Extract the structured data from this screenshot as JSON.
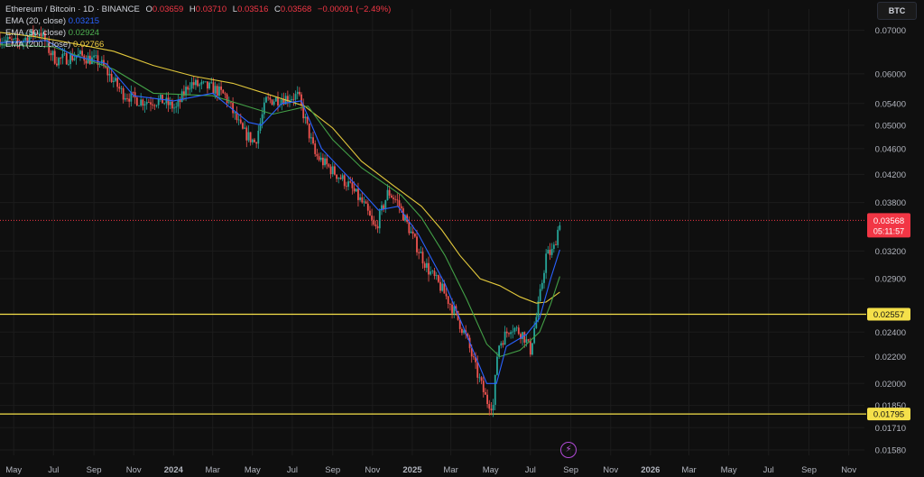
{
  "legend": {
    "pair": "Ethereum / Bitcoin · 1D · BINANCE",
    "open_label": "O",
    "open": "0.03659",
    "high_label": "H",
    "high": "0.03710",
    "low_label": "L",
    "low": "0.03516",
    "close_label": "C",
    "close": "0.03568",
    "change": "−0.00091 (−2.49%)",
    "ema20_label": "EMA (20, close)",
    "ema20": "0.03215",
    "ema50_label": "EMA (50, close)",
    "ema50": "0.02924",
    "ema200_label": "EMA (200, close)",
    "ema200": "0.02766"
  },
  "symbol_button": "BTC",
  "colors": {
    "background": "#0f0f0f",
    "grid": "#1c1c1c",
    "up": "#26a69a",
    "down": "#ef5350",
    "ema20": "#2962ff",
    "ema50": "#43a047",
    "ema200": "#e3c93c",
    "hline": "#f5e04a",
    "axis_text": "#b2b5be",
    "price_tag": "#f23645"
  },
  "chart_data": {
    "type": "candlestick",
    "scale": "log",
    "ylim": [
      0.0155,
      0.0755
    ],
    "x_range": [
      "2023-04-10",
      "2026-11-25"
    ],
    "y_ticks": [
      "0.07000",
      "0.06000",
      "0.05400",
      "0.05000",
      "0.04600",
      "0.04200",
      "0.03800",
      "0.03200",
      "0.02900",
      "0.02400",
      "0.02200",
      "0.02000",
      "0.01850",
      "0.01710",
      "0.01580"
    ],
    "x_ticks": [
      {
        "date": "2023-05-01",
        "label": "May"
      },
      {
        "date": "2023-07-01",
        "label": "Jul"
      },
      {
        "date": "2023-09-01",
        "label": "Sep"
      },
      {
        "date": "2023-11-01",
        "label": "Nov"
      },
      {
        "date": "2024-01-01",
        "label": "2024"
      },
      {
        "date": "2024-03-01",
        "label": "Mar"
      },
      {
        "date": "2024-05-01",
        "label": "May"
      },
      {
        "date": "2024-07-01",
        "label": "Jul"
      },
      {
        "date": "2024-09-01",
        "label": "Sep"
      },
      {
        "date": "2024-11-01",
        "label": "Nov"
      },
      {
        "date": "2025-01-01",
        "label": "2025"
      },
      {
        "date": "2025-03-01",
        "label": "Mar"
      },
      {
        "date": "2025-05-01",
        "label": "May"
      },
      {
        "date": "2025-07-01",
        "label": "Jul"
      },
      {
        "date": "2025-09-01",
        "label": "Sep"
      },
      {
        "date": "2025-11-01",
        "label": "Nov"
      },
      {
        "date": "2026-01-01",
        "label": "2026"
      },
      {
        "date": "2026-03-01",
        "label": "Mar"
      },
      {
        "date": "2026-05-01",
        "label": "May"
      },
      {
        "date": "2026-07-01",
        "label": "Jul"
      },
      {
        "date": "2026-09-01",
        "label": "Sep"
      },
      {
        "date": "2026-11-01",
        "label": "Nov"
      }
    ],
    "close_path": [
      {
        "date": "2023-04-10",
        "price": 0.068
      },
      {
        "date": "2023-05-05",
        "price": 0.0668
      },
      {
        "date": "2023-06-10",
        "price": 0.07
      },
      {
        "date": "2023-06-25",
        "price": 0.065
      },
      {
        "date": "2023-07-05",
        "price": 0.063
      },
      {
        "date": "2023-08-10",
        "price": 0.064
      },
      {
        "date": "2023-09-10",
        "price": 0.0625
      },
      {
        "date": "2023-10-15",
        "price": 0.056
      },
      {
        "date": "2023-11-10",
        "price": 0.0545
      },
      {
        "date": "2023-12-15",
        "price": 0.0545
      },
      {
        "date": "2024-01-05",
        "price": 0.053
      },
      {
        "date": "2024-01-25",
        "price": 0.058
      },
      {
        "date": "2024-03-01",
        "price": 0.057
      },
      {
        "date": "2024-03-20",
        "price": 0.0555
      },
      {
        "date": "2024-04-15",
        "price": 0.049
      },
      {
        "date": "2024-05-05",
        "price": 0.047
      },
      {
        "date": "2024-05-22",
        "price": 0.0545
      },
      {
        "date": "2024-06-15",
        "price": 0.055
      },
      {
        "date": "2024-07-10",
        "price": 0.0555
      },
      {
        "date": "2024-08-05",
        "price": 0.045
      },
      {
        "date": "2024-09-01",
        "price": 0.0425
      },
      {
        "date": "2024-09-25",
        "price": 0.0405
      },
      {
        "date": "2024-10-20",
        "price": 0.0375
      },
      {
        "date": "2024-11-05",
        "price": 0.0345
      },
      {
        "date": "2024-11-25",
        "price": 0.0395
      },
      {
        "date": "2024-12-10",
        "price": 0.038
      },
      {
        "date": "2025-01-05",
        "price": 0.033
      },
      {
        "date": "2025-01-25",
        "price": 0.03
      },
      {
        "date": "2025-02-15",
        "price": 0.028
      },
      {
        "date": "2025-03-05",
        "price": 0.026
      },
      {
        "date": "2025-03-25",
        "price": 0.0235
      },
      {
        "date": "2025-04-10",
        "price": 0.0208
      },
      {
        "date": "2025-04-25",
        "price": 0.0188
      },
      {
        "date": "2025-05-05",
        "price": 0.0185
      },
      {
        "date": "2025-05-12",
        "price": 0.0228
      },
      {
        "date": "2025-06-01",
        "price": 0.0245
      },
      {
        "date": "2025-06-20",
        "price": 0.0238
      },
      {
        "date": "2025-07-01",
        "price": 0.0225
      },
      {
        "date": "2025-07-15",
        "price": 0.027
      },
      {
        "date": "2025-07-25",
        "price": 0.0315
      },
      {
        "date": "2025-08-05",
        "price": 0.032
      },
      {
        "date": "2025-08-15",
        "price": 0.0356
      }
    ],
    "ema20": [
      {
        "date": "2023-04-10",
        "price": 0.067
      },
      {
        "date": "2023-06-20",
        "price": 0.0675
      },
      {
        "date": "2023-08-01",
        "price": 0.064
      },
      {
        "date": "2023-09-20",
        "price": 0.0622
      },
      {
        "date": "2023-11-01",
        "price": 0.0555
      },
      {
        "date": "2024-01-01",
        "price": 0.0545
      },
      {
        "date": "2024-03-01",
        "price": 0.056
      },
      {
        "date": "2024-04-25",
        "price": 0.0505
      },
      {
        "date": "2024-05-15",
        "price": 0.05
      },
      {
        "date": "2024-06-15",
        "price": 0.054
      },
      {
        "date": "2024-07-15",
        "price": 0.0545
      },
      {
        "date": "2024-08-15",
        "price": 0.046
      },
      {
        "date": "2024-10-01",
        "price": 0.041
      },
      {
        "date": "2024-11-10",
        "price": 0.037
      },
      {
        "date": "2024-12-10",
        "price": 0.0375
      },
      {
        "date": "2025-01-10",
        "price": 0.034
      },
      {
        "date": "2025-02-20",
        "price": 0.0285
      },
      {
        "date": "2025-03-25",
        "price": 0.0238
      },
      {
        "date": "2025-04-25",
        "price": 0.02
      },
      {
        "date": "2025-05-10",
        "price": 0.02
      },
      {
        "date": "2025-05-25",
        "price": 0.0228
      },
      {
        "date": "2025-06-25",
        "price": 0.0238
      },
      {
        "date": "2025-07-15",
        "price": 0.0252
      },
      {
        "date": "2025-08-01",
        "price": 0.029
      },
      {
        "date": "2025-08-15",
        "price": 0.03215
      }
    ],
    "ema50": [
      {
        "date": "2023-04-10",
        "price": 0.0665
      },
      {
        "date": "2023-07-01",
        "price": 0.066
      },
      {
        "date": "2023-10-01",
        "price": 0.061
      },
      {
        "date": "2023-12-01",
        "price": 0.056
      },
      {
        "date": "2024-03-01",
        "price": 0.0555
      },
      {
        "date": "2024-06-01",
        "price": 0.052
      },
      {
        "date": "2024-07-25",
        "price": 0.0535
      },
      {
        "date": "2024-09-01",
        "price": 0.0475
      },
      {
        "date": "2024-10-15",
        "price": 0.043
      },
      {
        "date": "2024-12-15",
        "price": 0.039
      },
      {
        "date": "2025-01-15",
        "price": 0.036
      },
      {
        "date": "2025-02-20",
        "price": 0.0315
      },
      {
        "date": "2025-03-25",
        "price": 0.027
      },
      {
        "date": "2025-04-25",
        "price": 0.023
      },
      {
        "date": "2025-05-15",
        "price": 0.022
      },
      {
        "date": "2025-06-15",
        "price": 0.0225
      },
      {
        "date": "2025-07-15",
        "price": 0.024
      },
      {
        "date": "2025-08-01",
        "price": 0.0265
      },
      {
        "date": "2025-08-15",
        "price": 0.02924
      }
    ],
    "ema200": [
      {
        "date": "2023-04-10",
        "price": 0.0695
      },
      {
        "date": "2023-06-01",
        "price": 0.0685
      },
      {
        "date": "2023-08-01",
        "price": 0.0668
      },
      {
        "date": "2023-10-01",
        "price": 0.065
      },
      {
        "date": "2023-12-01",
        "price": 0.0618
      },
      {
        "date": "2024-02-01",
        "price": 0.0595
      },
      {
        "date": "2024-04-01",
        "price": 0.058
      },
      {
        "date": "2024-06-01",
        "price": 0.0555
      },
      {
        "date": "2024-07-20",
        "price": 0.0535
      },
      {
        "date": "2024-09-01",
        "price": 0.0495
      },
      {
        "date": "2024-10-15",
        "price": 0.044
      },
      {
        "date": "2024-12-01",
        "price": 0.0405
      },
      {
        "date": "2025-01-15",
        "price": 0.0375
      },
      {
        "date": "2025-02-15",
        "price": 0.0345
      },
      {
        "date": "2025-03-15",
        "price": 0.0315
      },
      {
        "date": "2025-04-15",
        "price": 0.029
      },
      {
        "date": "2025-05-15",
        "price": 0.0283
      },
      {
        "date": "2025-06-15",
        "price": 0.0272
      },
      {
        "date": "2025-07-10",
        "price": 0.0266
      },
      {
        "date": "2025-07-25",
        "price": 0.0267
      },
      {
        "date": "2025-08-15",
        "price": 0.02766
      }
    ],
    "horizontal_lines": [
      {
        "price": 0.02557,
        "label": "0.02557"
      },
      {
        "price": 0.01795,
        "label": "0.01795"
      }
    ],
    "current_price": {
      "price": 0.03568,
      "label": "0.03568",
      "countdown": "05:11:57"
    }
  }
}
